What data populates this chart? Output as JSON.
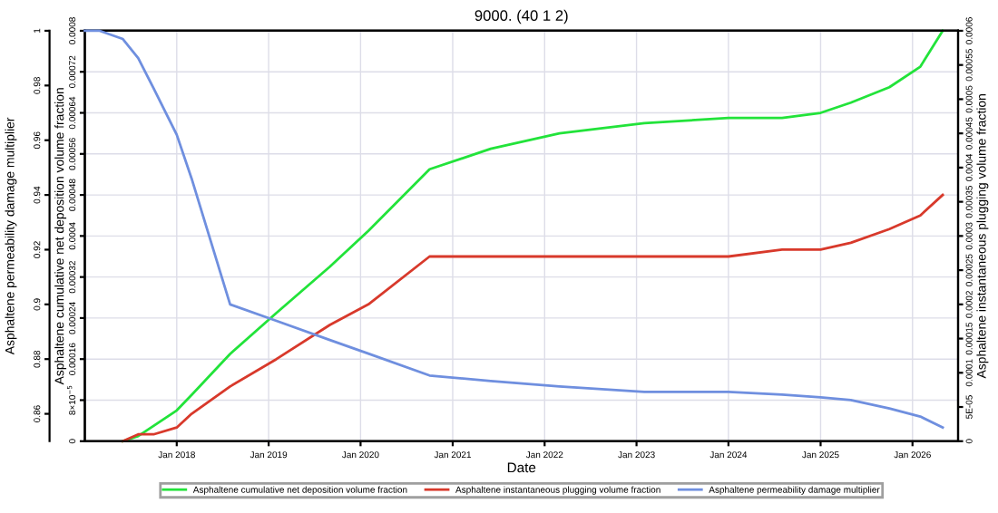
{
  "chart_data": {
    "type": "line",
    "title": "9000. (40 1 2)",
    "xlabel": "Date",
    "ylabel": "Asphaltene cumulative net deposition volume fraction",
    "y2label": "Asphaltene instantaneous plugging volume fraction",
    "y3label": "Asphaltene permeability damage multiplier",
    "x": [
      "2017-01",
      "2017-03",
      "2017-06",
      "2017-08",
      "2017-10",
      "2018-01",
      "2018-03",
      "2018-08",
      "2019-02",
      "2019-09",
      "2020-02",
      "2020-10",
      "2021-06",
      "2022-03",
      "2023-02",
      "2024-01",
      "2024-08",
      "2025-01",
      "2025-05",
      "2025-10",
      "2026-02",
      "2026-05"
    ],
    "series": [
      {
        "name": "Asphaltene cumulative net deposition volume fraction",
        "color": "#22e33a",
        "values": [
          null,
          null,
          0,
          1e-05,
          3e-05,
          6e-05,
          9e-05,
          0.00017,
          0.00025,
          0.00034,
          0.00041,
          0.00053,
          0.00057,
          0.0006,
          0.00062,
          0.00063,
          0.00063,
          0.00064,
          0.00066,
          0.00069,
          0.00073,
          0.0008
        ]
      },
      {
        "name": "Asphaltene instantaneous plugging volume fraction",
        "color": "#d8392b",
        "axis": "y2",
        "values": [
          null,
          null,
          0,
          1e-05,
          1e-05,
          2e-05,
          4e-05,
          8e-05,
          0.00012,
          0.00017,
          0.0002,
          0.00027,
          0.00027,
          0.00027,
          0.00027,
          0.00027,
          0.00028,
          0.00028,
          0.00029,
          0.00031,
          0.00033,
          0.00036
        ]
      },
      {
        "name": "Asphaltene permeability damage multiplier",
        "color": "#6f8fdf",
        "axis": "y3",
        "values": [
          1,
          1,
          0.997,
          0.99,
          0.979,
          0.962,
          0.946,
          0.9,
          0.894,
          0.887,
          0.882,
          0.874,
          0.872,
          0.87,
          0.868,
          0.868,
          0.867,
          0.866,
          0.865,
          0.862,
          0.859,
          0.855
        ]
      }
    ],
    "xlim": [
      "2017-01",
      "2026-07"
    ],
    "xticks": [
      {
        "value": "2018-01",
        "label": "Jan 2018"
      },
      {
        "value": "2019-01",
        "label": "Jan 2019"
      },
      {
        "value": "2020-01",
        "label": "Jan 2020"
      },
      {
        "value": "2021-01",
        "label": "Jan 2021"
      },
      {
        "value": "2022-01",
        "label": "Jan 2022"
      },
      {
        "value": "2023-01",
        "label": "Jan 2023"
      },
      {
        "value": "2024-01",
        "label": "Jan 2024"
      },
      {
        "value": "2025-01",
        "label": "Jan 2025"
      },
      {
        "value": "2026-01",
        "label": "Jan 2026"
      }
    ],
    "ylim": [
      0,
      0.0008
    ],
    "yticks": [
      0,
      {
        "value": 8e-05,
        "label": "8×10$^{−5}$"
      },
      0.00016,
      0.00024,
      0.00032,
      0.0004,
      0.00048,
      0.00056,
      0.00064,
      0.00072,
      0.0008
    ],
    "y2lim": [
      0,
      0.0006
    ],
    "y2ticks": [
      0,
      {
        "value": 5e-05,
        "label": "5E-05"
      },
      0.0001,
      0.00015,
      0.0002,
      0.00025,
      0.0003,
      0.00035,
      0.0004,
      0.00045,
      0.0005,
      0.00055,
      0.0006
    ],
    "y3lim": [
      0.85,
      1
    ],
    "y3ticks": [
      0.86,
      0.88,
      0.9,
      0.92,
      0.94,
      0.96,
      0.98,
      1
    ],
    "grid": true,
    "legend": "bottom",
    "marker": "none",
    "line_style": "solid"
  }
}
